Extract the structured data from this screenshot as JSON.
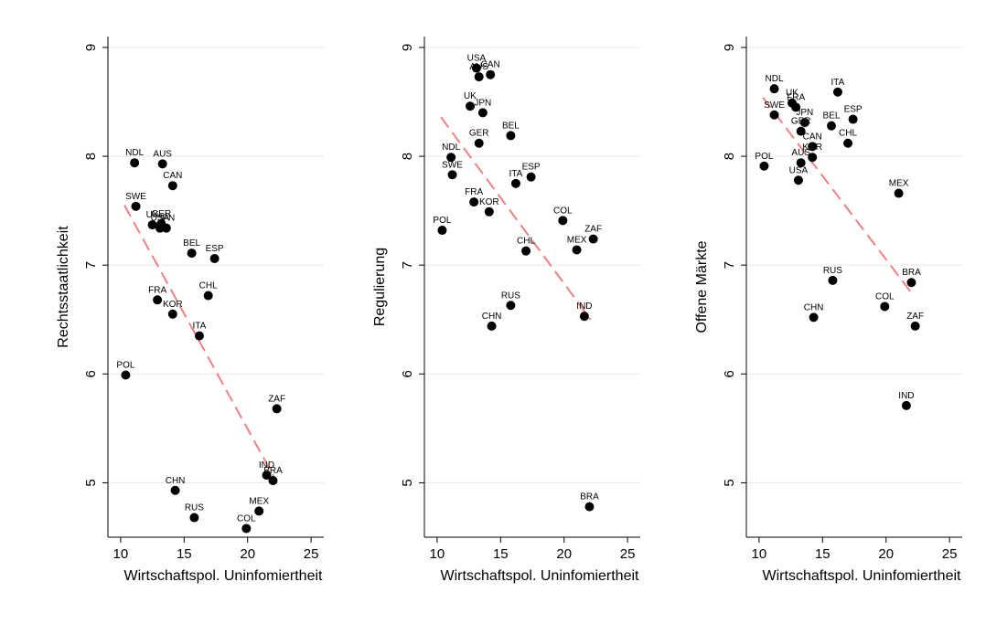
{
  "chart_data": [
    {
      "type": "scatter",
      "xlabel": "Wirtschaftspol. Uninfomiertheit",
      "ylabel": "Rechtsstaatlichkeit",
      "xlim": [
        9,
        26
      ],
      "ylim": [
        4.5,
        9.1
      ],
      "xticks": [
        "10",
        "15",
        "20",
        "25"
      ],
      "yticks": [
        "5",
        "6",
        "7",
        "8",
        "9"
      ],
      "grid": true,
      "fit_line": {
        "x": [
          10.3,
          22.1
        ],
        "y": [
          7.55,
          5.05
        ],
        "style": "dashed",
        "color": "#f08080"
      },
      "points": [
        {
          "label": "NDL",
          "x": 11.1,
          "y": 7.94
        },
        {
          "label": "AUS",
          "x": 13.3,
          "y": 7.93
        },
        {
          "label": "CAN",
          "x": 14.1,
          "y": 7.73
        },
        {
          "label": "SWE",
          "x": 11.2,
          "y": 7.54
        },
        {
          "label": "UK",
          "x": 12.5,
          "y": 7.37
        },
        {
          "label": "GER",
          "x": 13.2,
          "y": 7.38
        },
        {
          "label": "USA",
          "x": 13.1,
          "y": 7.34
        },
        {
          "label": "JPN",
          "x": 13.6,
          "y": 7.34
        },
        {
          "label": "BEL",
          "x": 15.6,
          "y": 7.11
        },
        {
          "label": "ESP",
          "x": 17.4,
          "y": 7.06
        },
        {
          "label": "FRA",
          "x": 12.9,
          "y": 6.68
        },
        {
          "label": "CHL",
          "x": 16.9,
          "y": 6.72
        },
        {
          "label": "KOR",
          "x": 14.1,
          "y": 6.55
        },
        {
          "label": "ITA",
          "x": 16.2,
          "y": 6.35
        },
        {
          "label": "POL",
          "x": 10.4,
          "y": 5.99
        },
        {
          "label": "ZAF",
          "x": 22.3,
          "y": 5.68
        },
        {
          "label": "IND",
          "x": 21.5,
          "y": 5.07
        },
        {
          "label": "BRA",
          "x": 22.0,
          "y": 5.02
        },
        {
          "label": "CHN",
          "x": 14.3,
          "y": 4.93
        },
        {
          "label": "MEX",
          "x": 20.9,
          "y": 4.74
        },
        {
          "label": "RUS",
          "x": 15.8,
          "y": 4.68
        },
        {
          "label": "COL",
          "x": 19.9,
          "y": 4.58
        }
      ]
    },
    {
      "type": "scatter",
      "xlabel": "Wirtschaftspol. Uninfomiertheit",
      "ylabel": "Regulierung",
      "xlim": [
        9,
        26
      ],
      "ylim": [
        4.5,
        9.1
      ],
      "xticks": [
        "10",
        "15",
        "20",
        "25"
      ],
      "yticks": [
        "5",
        "6",
        "7",
        "8",
        "9"
      ],
      "grid": true,
      "fit_line": {
        "x": [
          10.3,
          22.1
        ],
        "y": [
          8.36,
          6.5
        ],
        "style": "dashed",
        "color": "#f08080"
      },
      "points": [
        {
          "label": "USA",
          "x": 13.1,
          "y": 8.81
        },
        {
          "label": "AUS",
          "x": 13.3,
          "y": 8.73
        },
        {
          "label": "CAN",
          "x": 14.2,
          "y": 8.75
        },
        {
          "label": "UK",
          "x": 12.6,
          "y": 8.46
        },
        {
          "label": "JPN",
          "x": 13.6,
          "y": 8.4
        },
        {
          "label": "BEL",
          "x": 15.8,
          "y": 8.19
        },
        {
          "label": "GER",
          "x": 13.3,
          "y": 8.12
        },
        {
          "label": "NDL",
          "x": 11.1,
          "y": 7.99
        },
        {
          "label": "SWE",
          "x": 11.2,
          "y": 7.83
        },
        {
          "label": "ITA",
          "x": 16.2,
          "y": 7.75
        },
        {
          "label": "ESP",
          "x": 17.4,
          "y": 7.81
        },
        {
          "label": "FRA",
          "x": 12.9,
          "y": 7.58
        },
        {
          "label": "KOR",
          "x": 14.1,
          "y": 7.49
        },
        {
          "label": "COL",
          "x": 19.9,
          "y": 7.41
        },
        {
          "label": "POL",
          "x": 10.4,
          "y": 7.32
        },
        {
          "label": "ZAF",
          "x": 22.3,
          "y": 7.24
        },
        {
          "label": "MEX",
          "x": 21.0,
          "y": 7.14
        },
        {
          "label": "CHL",
          "x": 17.0,
          "y": 7.13
        },
        {
          "label": "RUS",
          "x": 15.8,
          "y": 6.63
        },
        {
          "label": "IND",
          "x": 21.6,
          "y": 6.53
        },
        {
          "label": "CHN",
          "x": 14.3,
          "y": 6.44
        },
        {
          "label": "BRA",
          "x": 22.0,
          "y": 4.78
        }
      ]
    },
    {
      "type": "scatter",
      "xlabel": "Wirtschaftspol. Uninfomiertheit",
      "ylabel": "Offene Märkte",
      "xlim": [
        9,
        26
      ],
      "ylim": [
        4.5,
        9.1
      ],
      "xticks": [
        "10",
        "15",
        "20",
        "25"
      ],
      "yticks": [
        "5",
        "6",
        "7",
        "8",
        "9"
      ],
      "grid": true,
      "fit_line": {
        "x": [
          10.3,
          22.1
        ],
        "y": [
          8.54,
          6.73
        ],
        "style": "dashed",
        "color": "#f08080"
      },
      "points": [
        {
          "label": "NDL",
          "x": 11.2,
          "y": 8.62
        },
        {
          "label": "ITA",
          "x": 16.2,
          "y": 8.59
        },
        {
          "label": "UK",
          "x": 12.6,
          "y": 8.49
        },
        {
          "label": "FRA",
          "x": 12.9,
          "y": 8.45
        },
        {
          "label": "SWE",
          "x": 11.2,
          "y": 8.38
        },
        {
          "label": "ESP",
          "x": 17.4,
          "y": 8.34
        },
        {
          "label": "JPN",
          "x": 13.6,
          "y": 8.31
        },
        {
          "label": "BEL",
          "x": 15.7,
          "y": 8.28
        },
        {
          "label": "GER",
          "x": 13.3,
          "y": 8.23
        },
        {
          "label": "CHL",
          "x": 17.0,
          "y": 8.12
        },
        {
          "label": "CAN",
          "x": 14.2,
          "y": 8.09
        },
        {
          "label": "KOR",
          "x": 14.2,
          "y": 7.99
        },
        {
          "label": "AUS",
          "x": 13.3,
          "y": 7.94
        },
        {
          "label": "POL",
          "x": 10.4,
          "y": 7.91
        },
        {
          "label": "USA",
          "x": 13.1,
          "y": 7.78
        },
        {
          "label": "MEX",
          "x": 21.0,
          "y": 7.66
        },
        {
          "label": "RUS",
          "x": 15.8,
          "y": 6.86
        },
        {
          "label": "BRA",
          "x": 22.0,
          "y": 6.84
        },
        {
          "label": "COL",
          "x": 19.9,
          "y": 6.62
        },
        {
          "label": "CHN",
          "x": 14.3,
          "y": 6.52
        },
        {
          "label": "ZAF",
          "x": 22.3,
          "y": 6.44
        },
        {
          "label": "IND",
          "x": 21.6,
          "y": 5.71
        }
      ]
    }
  ]
}
